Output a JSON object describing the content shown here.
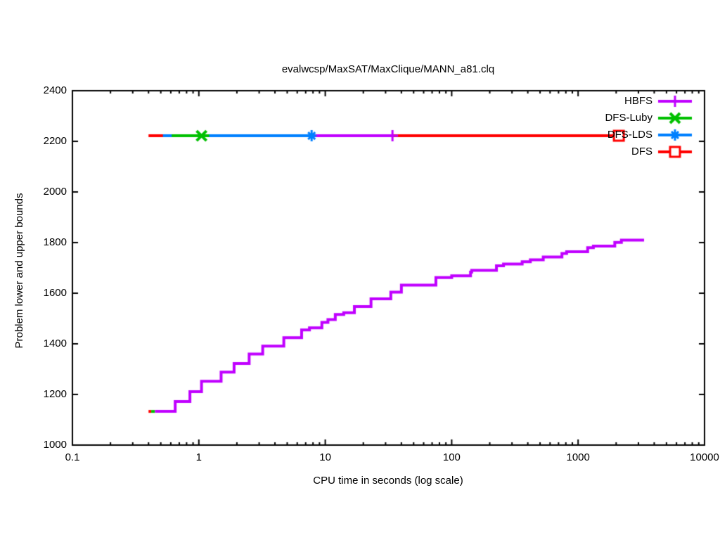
{
  "chart_data": {
    "type": "line",
    "title": "evalwcsp/MaxSAT/MaxClique/MANN_a81.clq",
    "xlabel": "CPU time in seconds (log scale)",
    "ylabel": "Problem lower and upper bounds",
    "x_axis": {
      "scale": "log",
      "min": 0.1,
      "max": 10000,
      "tick_values": [
        0.1,
        1,
        10,
        100,
        1000,
        10000
      ],
      "tick_labels": [
        "0.1",
        "1",
        "10",
        "100",
        "1000",
        "10000"
      ],
      "minor_ticks": true
    },
    "y_axis": {
      "scale": "linear",
      "min": 1000,
      "max": 2400,
      "tick_step": 200,
      "tick_values": [
        1000,
        1200,
        1400,
        1600,
        1800,
        2000,
        2200,
        2400
      ],
      "tick_labels": [
        "1000",
        "1200",
        "1400",
        "1600",
        "1800",
        "2000",
        "2200",
        "2400"
      ]
    },
    "grid": false,
    "legend": {
      "position": "top-right",
      "entries": [
        {
          "label": "HBFS",
          "color": "#c000ff",
          "marker": "plus"
        },
        {
          "label": "DFS-Luby",
          "color": "#00c000",
          "marker": "cross"
        },
        {
          "label": "DFS-LDS",
          "color": "#0080ff",
          "marker": "star"
        },
        {
          "label": "DFS",
          "color": "#ff0000",
          "marker": "square"
        }
      ]
    },
    "series": [
      {
        "name": "DFS-upper-bound",
        "color": "#ff0000",
        "marker": "square",
        "style": "step",
        "points": [
          [
            0.4,
            2222
          ],
          [
            2100,
            2222
          ]
        ],
        "markers_at": [
          [
            2100,
            2222
          ]
        ]
      },
      {
        "name": "HBFS-upper-bound",
        "color": "#c000ff",
        "marker": "plus",
        "style": "step",
        "points": [
          [
            1.2,
            2222
          ],
          [
            34,
            2222
          ]
        ],
        "markers_at": [
          [
            34,
            2222
          ]
        ]
      },
      {
        "name": "DFS-LDS-upper-bound",
        "color": "#0080ff",
        "marker": "star",
        "style": "step",
        "points": [
          [
            0.52,
            2222
          ],
          [
            7.8,
            2222
          ]
        ],
        "markers_at": [
          [
            7.8,
            2222
          ]
        ]
      },
      {
        "name": "DFS-Luby-upper-bound",
        "color": "#00c000",
        "marker": "cross",
        "style": "step",
        "points": [
          [
            0.61,
            2222
          ],
          [
            1.21,
            2222
          ]
        ],
        "markers_at": [
          [
            1.05,
            2222
          ]
        ]
      },
      {
        "name": "DFS-lower-bound",
        "color": "#ff0000",
        "marker": "none",
        "style": "step",
        "points": [
          [
            0.4,
            1133
          ],
          [
            0.42,
            1133
          ]
        ],
        "markers_at": []
      },
      {
        "name": "DFS-Luby-lower-bound",
        "color": "#00c000",
        "marker": "none",
        "style": "step",
        "points": [
          [
            0.42,
            1133
          ],
          [
            0.45,
            1133
          ]
        ],
        "markers_at": []
      },
      {
        "name": "HBFS-lower-bound",
        "color": "#c000ff",
        "marker": "none",
        "style": "step",
        "points": [
          [
            0.45,
            1133
          ],
          [
            0.65,
            1172
          ],
          [
            0.85,
            1211
          ],
          [
            1.05,
            1252
          ],
          [
            1.5,
            1288
          ],
          [
            1.9,
            1322
          ],
          [
            2.5,
            1360
          ],
          [
            3.2,
            1391
          ],
          [
            4.7,
            1424
          ],
          [
            6.5,
            1455
          ],
          [
            7.5,
            1463
          ],
          [
            9.4,
            1485
          ],
          [
            10.5,
            1496
          ],
          [
            12,
            1516
          ],
          [
            14,
            1523
          ],
          [
            17,
            1547
          ],
          [
            23,
            1578
          ],
          [
            33,
            1604
          ],
          [
            40,
            1632
          ],
          [
            75,
            1662
          ],
          [
            100,
            1669
          ],
          [
            141,
            1683
          ],
          [
            144,
            1690
          ],
          [
            226,
            1708
          ],
          [
            257,
            1715
          ],
          [
            361,
            1724
          ],
          [
            419,
            1732
          ],
          [
            530,
            1743
          ],
          [
            745,
            1757
          ],
          [
            811,
            1764
          ],
          [
            1190,
            1780
          ],
          [
            1320,
            1786
          ],
          [
            1950,
            1801
          ],
          [
            2200,
            1810
          ],
          [
            3240,
            1815
          ]
        ],
        "markers_at": []
      }
    ]
  }
}
